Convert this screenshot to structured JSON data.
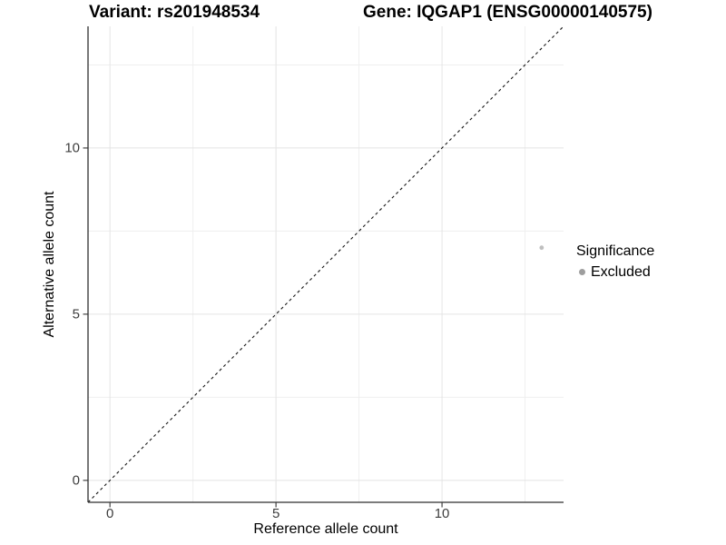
{
  "header": {
    "variant_title": "Variant: rs201948534",
    "gene_title": "Gene: IQGAP1 (ENSG00000140575)"
  },
  "chart_data": {
    "type": "scatter",
    "xlabel": "Reference allele count",
    "ylabel": "Alternative allele count",
    "xlim": [
      -0.66,
      13.66
    ],
    "ylim": [
      -0.66,
      13.66
    ],
    "x_ticks": [
      0,
      5,
      10
    ],
    "y_ticks": [
      0,
      5,
      10
    ],
    "x_minor_gridlines": [
      2.5,
      7.5,
      12.5
    ],
    "y_minor_gridlines": [
      2.5,
      7.5,
      12.5
    ],
    "grid": "major+minor",
    "series": [
      {
        "name": "Excluded",
        "points": [
          {
            "x": 13,
            "y": 7
          }
        ]
      }
    ],
    "reference_line": {
      "type": "identity y=x",
      "style": "dashed",
      "x1": -0.66,
      "y1": -0.66,
      "x2": 13.66,
      "y2": 13.66
    },
    "legend": {
      "title": "Significance",
      "position": "right",
      "items": [
        {
          "label": "Excluded",
          "color": "#9e9e9e",
          "marker": "circle"
        }
      ]
    }
  },
  "colors": {
    "background": "#ffffff",
    "grid_major": "#e4e4e4",
    "grid_minor": "#efefef",
    "axis_line": "#2f2f2f",
    "tick_mark": "#333333",
    "tick_label": "#3d3d3d",
    "dashed_line": "#161616",
    "point": "#bfbfbf",
    "title": "#000000"
  }
}
